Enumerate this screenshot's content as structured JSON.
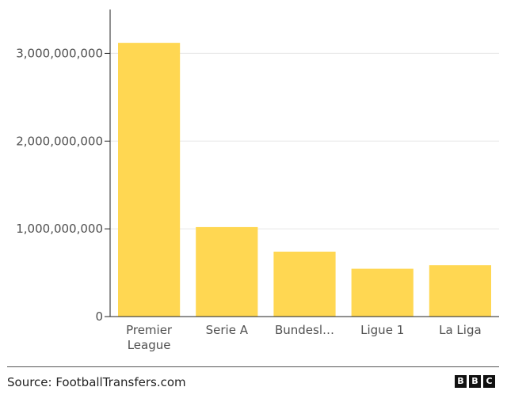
{
  "chart_data": {
    "type": "bar",
    "categories": [
      "Premier League",
      "Serie A",
      "Bundesliga",
      "Ligue 1",
      "La Liga"
    ],
    "category_tick_labels": [
      [
        "Premier",
        "League"
      ],
      [
        "Serie A"
      ],
      [
        "Bundesl…"
      ],
      [
        "Ligue 1"
      ],
      [
        "La Liga"
      ]
    ],
    "values": [
      3120000000,
      1020000000,
      740000000,
      545000000,
      585000000
    ],
    "ylim": [
      0,
      3500000000
    ],
    "yticks": [
      0,
      1000000000,
      2000000000,
      3000000000
    ],
    "ytick_labels": [
      "0",
      "1,000,000,000",
      "2,000,000,000",
      "3,000,000,000"
    ],
    "grid": true,
    "bar_color": "#ffd752",
    "title": "",
    "xlabel": "",
    "ylabel": ""
  },
  "footer": {
    "source": "Source: FootballTransfers.com",
    "logo": [
      "B",
      "B",
      "C"
    ]
  }
}
